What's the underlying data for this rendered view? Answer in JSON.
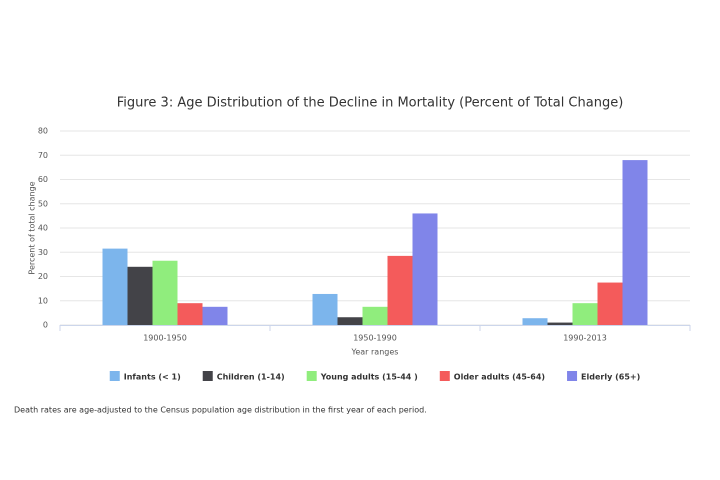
{
  "chart_data": {
    "type": "bar",
    "title": "Figure 3: Age Distribution of the Decline in Mortality (Percent of Total Change)",
    "x_label": "Year ranges",
    "y_label": "Percent of total change",
    "categories": [
      "1900-1950",
      "1950-1990",
      "1990-2013"
    ],
    "series": [
      {
        "name": "Infants (< 1)",
        "color": "#7cb5ec",
        "values": [
          31.5,
          12.8,
          2.8
        ]
      },
      {
        "name": "Children (1-14)",
        "color": "#434348",
        "values": [
          24,
          3.2,
          1
        ]
      },
      {
        "name": "Young adults (15-44 )",
        "color": "#90ed7d",
        "values": [
          26.5,
          7.5,
          9
        ]
      },
      {
        "name": "Older adults (45-64)",
        "color": "#f45b5b",
        "values": [
          9,
          28.5,
          17.5
        ]
      },
      {
        "name": "Elderly (65+)",
        "color": "#8085e9",
        "values": [
          7.5,
          46,
          68
        ]
      }
    ],
    "ylim": [
      0,
      80
    ],
    "yticks": [
      0,
      10,
      20,
      30,
      40,
      50,
      60,
      70,
      80
    ],
    "grid": true,
    "legend": "bottom",
    "note": "Death rates are age-adjusted to the Census population age distribution in the first year of each period."
  }
}
